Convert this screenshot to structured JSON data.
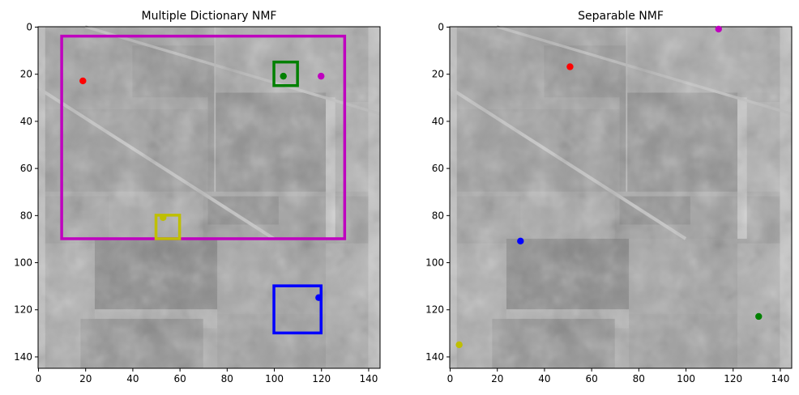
{
  "chart_data": [
    {
      "type": "scatter",
      "title": "Multiple Dictionary NMF",
      "xlim": [
        0,
        145
      ],
      "ylim": [
        145,
        0
      ],
      "y_inverted": true,
      "background": "grayscale aerial image (field plots)",
      "xticks": [
        0,
        20,
        40,
        60,
        80,
        100,
        120,
        140
      ],
      "yticks": [
        0,
        20,
        40,
        60,
        80,
        100,
        120,
        140
      ],
      "points": [
        {
          "x": 19,
          "y": 23,
          "color": "#ff0000"
        },
        {
          "x": 104,
          "y": 21,
          "color": "#008000"
        },
        {
          "x": 120,
          "y": 21,
          "color": "#bf00bf"
        },
        {
          "x": 53,
          "y": 81,
          "color": "#bfbf00"
        },
        {
          "x": 119,
          "y": 115,
          "color": "#0000ff"
        }
      ],
      "rectangles": [
        {
          "x0": 10,
          "y0": 4,
          "x1": 130,
          "y1": 90,
          "color": "#bf00bf"
        },
        {
          "x0": 100,
          "y0": 15,
          "x1": 110,
          "y1": 25,
          "color": "#008000"
        },
        {
          "x0": 50,
          "y0": 80,
          "x1": 60,
          "y1": 90,
          "color": "#bfbf00"
        },
        {
          "x0": 100,
          "y0": 110,
          "x1": 120,
          "y1": 130,
          "color": "#0000ff"
        }
      ]
    },
    {
      "type": "scatter",
      "title": "Separable NMF",
      "xlim": [
        0,
        145
      ],
      "ylim": [
        145,
        0
      ],
      "y_inverted": true,
      "background": "grayscale aerial image (field plots)",
      "xticks": [
        0,
        20,
        40,
        60,
        80,
        100,
        120,
        140
      ],
      "yticks": [
        0,
        20,
        40,
        60,
        80,
        100,
        120,
        140
      ],
      "points": [
        {
          "x": 114,
          "y": 1,
          "color": "#bf00bf"
        },
        {
          "x": 51,
          "y": 17,
          "color": "#ff0000"
        },
        {
          "x": 30,
          "y": 91,
          "color": "#0000ff"
        },
        {
          "x": 131,
          "y": 123,
          "color": "#008000"
        },
        {
          "x": 4,
          "y": 135,
          "color": "#bfbf00"
        }
      ],
      "rectangles": []
    }
  ]
}
